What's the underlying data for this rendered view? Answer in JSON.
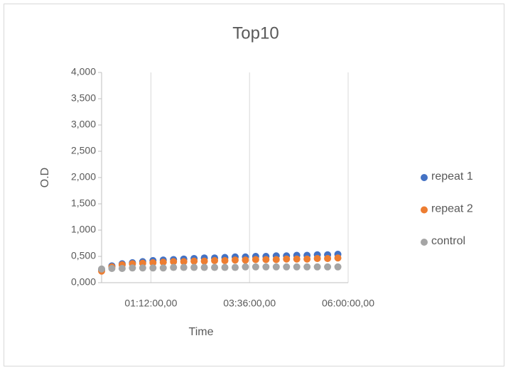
{
  "chart_data": {
    "type": "scatter",
    "title": "Top10",
    "xlabel": "Time",
    "ylabel": "O.D",
    "x": [
      0,
      0.25,
      0.5,
      0.75,
      1,
      1.25,
      1.5,
      1.75,
      2,
      2.25,
      2.5,
      2.75,
      3,
      3.25,
      3.5,
      3.75,
      4,
      4.25,
      4.5,
      4.75,
      5,
      5.25,
      5.5,
      5.75
    ],
    "series": [
      {
        "name": "repeat 1",
        "color": "#4472c4",
        "values": [
          0.25,
          0.32,
          0.36,
          0.38,
          0.4,
          0.42,
          0.43,
          0.44,
          0.45,
          0.46,
          0.47,
          0.47,
          0.48,
          0.49,
          0.49,
          0.5,
          0.5,
          0.51,
          0.51,
          0.52,
          0.52,
          0.53,
          0.53,
          0.54
        ]
      },
      {
        "name": "repeat 2",
        "color": "#ed7d31",
        "values": [
          0.22,
          0.3,
          0.34,
          0.36,
          0.37,
          0.38,
          0.39,
          0.4,
          0.4,
          0.41,
          0.41,
          0.42,
          0.42,
          0.43,
          0.43,
          0.44,
          0.44,
          0.44,
          0.45,
          0.45,
          0.45,
          0.46,
          0.46,
          0.47
        ]
      },
      {
        "name": "control",
        "color": "#a5a5a5",
        "values": [
          0.26,
          0.27,
          0.27,
          0.28,
          0.28,
          0.28,
          0.28,
          0.29,
          0.29,
          0.29,
          0.29,
          0.29,
          0.29,
          0.29,
          0.3,
          0.3,
          0.3,
          0.3,
          0.3,
          0.3,
          0.3,
          0.3,
          0.3,
          0.3
        ]
      }
    ],
    "xlim": [
      0,
      6
    ],
    "xticks": [
      {
        "value": 1.2,
        "label": "01:12:00,00"
      },
      {
        "value": 3.6,
        "label": "03:36:00,00"
      },
      {
        "value": 6,
        "label": "06:00:00,00"
      }
    ],
    "ylim": [
      0,
      4
    ],
    "yticks": [
      {
        "value": 0,
        "label": "0,000"
      },
      {
        "value": 0.5,
        "label": "0,500"
      },
      {
        "value": 1,
        "label": "1,000"
      },
      {
        "value": 1.5,
        "label": "1,500"
      },
      {
        "value": 2,
        "label": "2,000"
      },
      {
        "value": 2.5,
        "label": "2,500"
      },
      {
        "value": 3,
        "label": "3,000"
      },
      {
        "value": 3.5,
        "label": "3,500"
      },
      {
        "value": 4,
        "label": "4,000"
      }
    ],
    "grid": true,
    "legend": "right"
  }
}
